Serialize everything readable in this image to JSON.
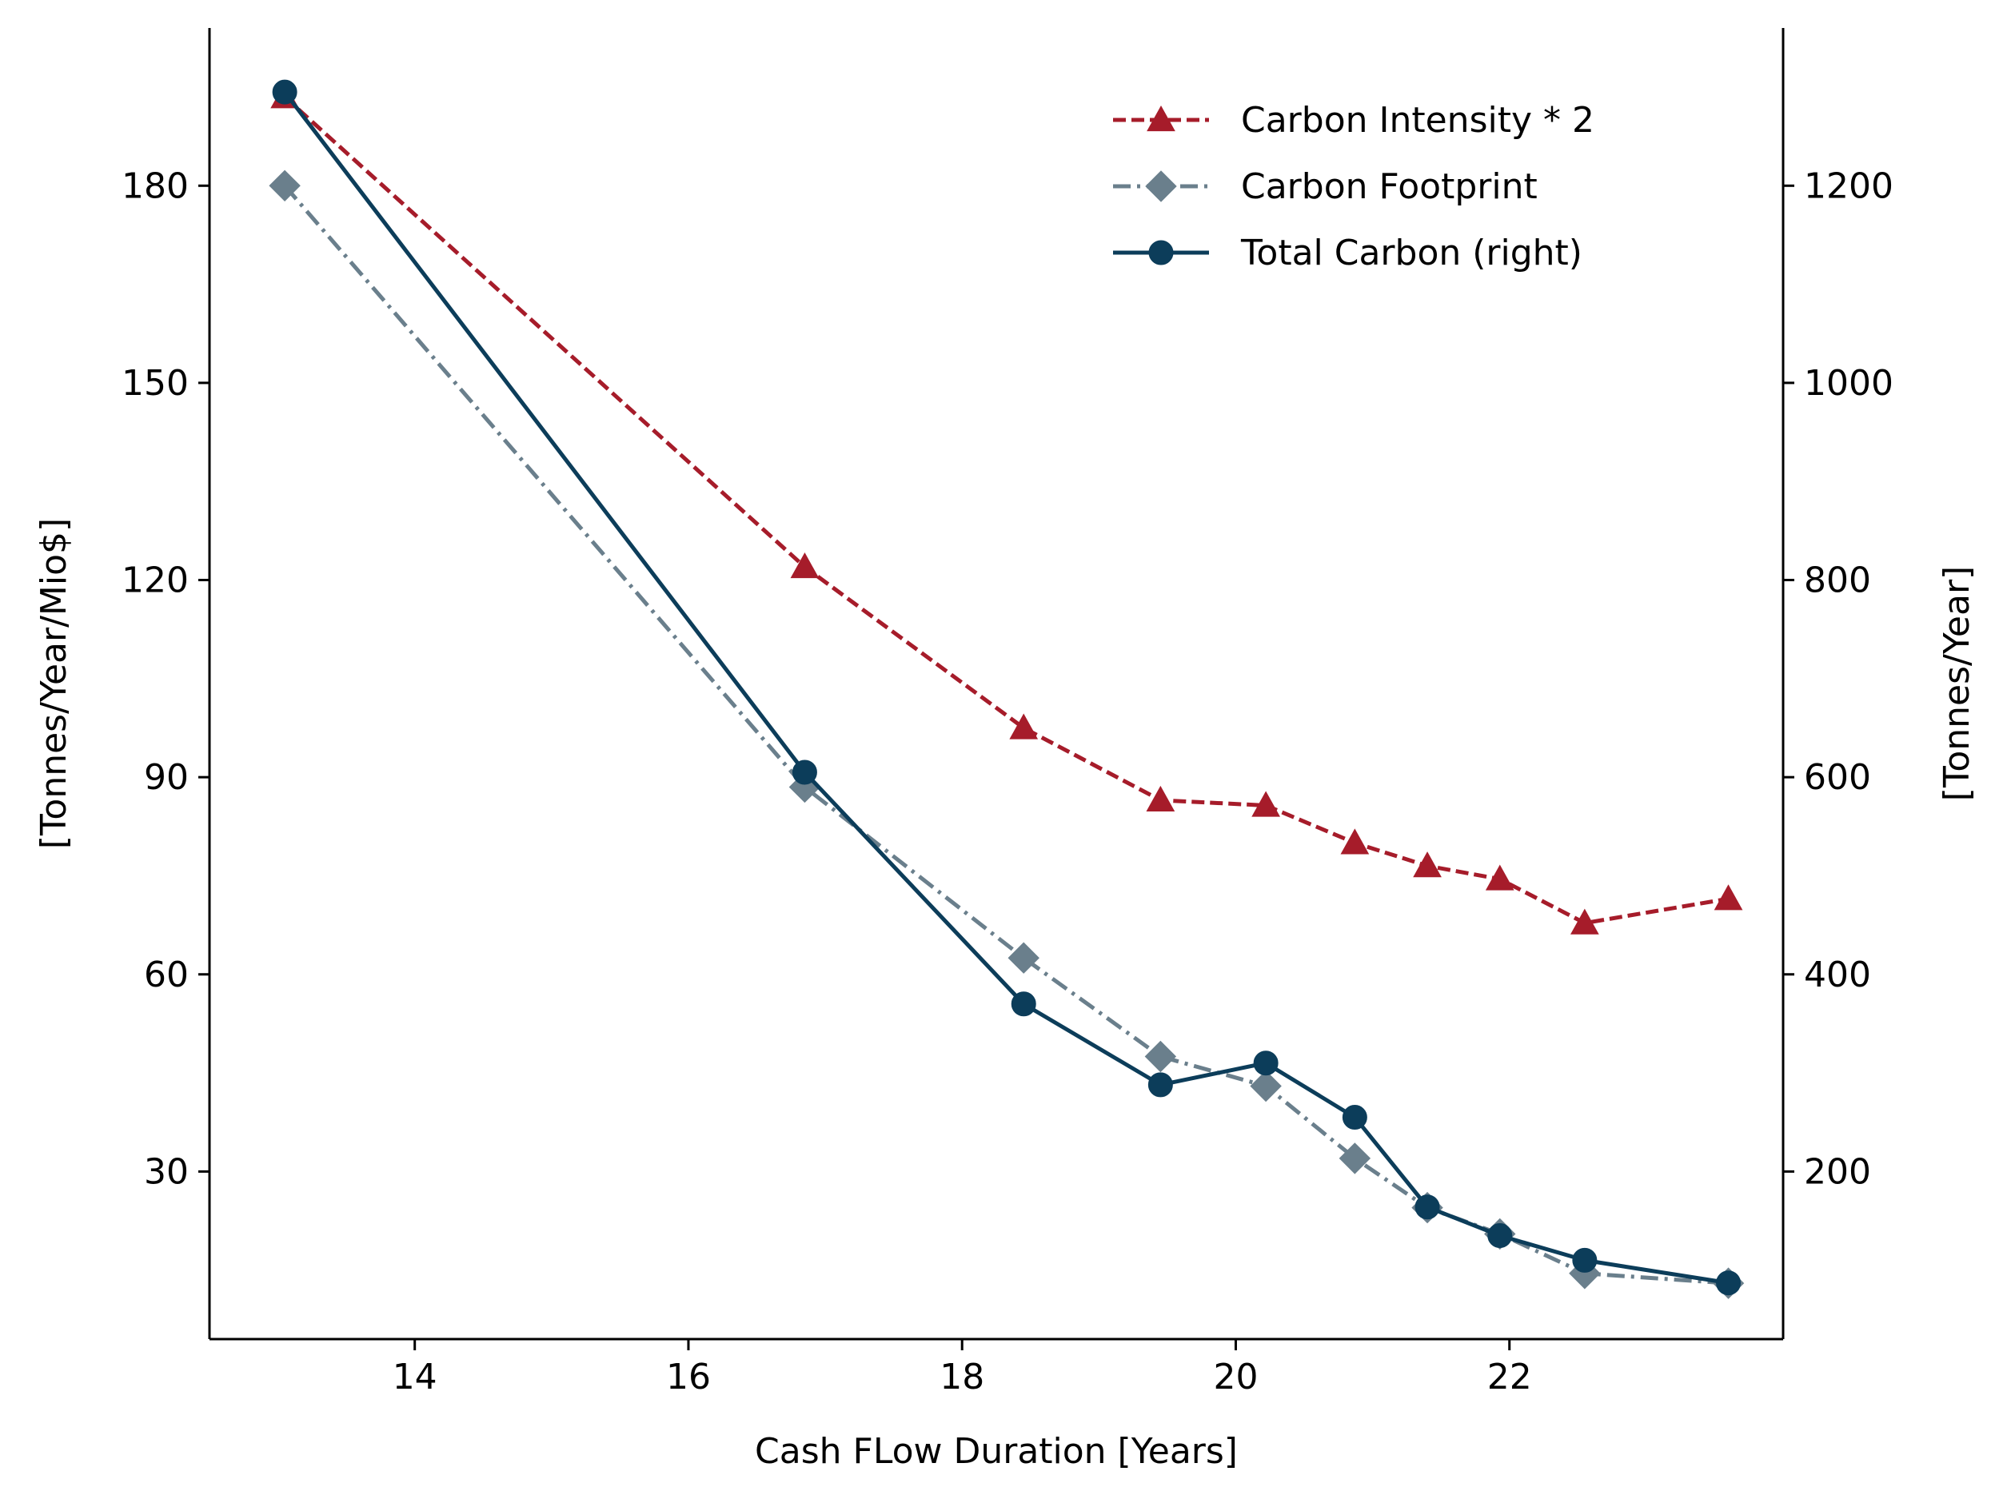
{
  "chart_data": {
    "type": "line",
    "title": "",
    "xlabel": "Cash FLow Duration [Years]",
    "ylabel_left": "[Tonnes/Year/Mio$]",
    "ylabel_right": "[Tonnes/Year]",
    "xlim": [
      12.5,
      24.0
    ],
    "ylim_left": [
      4.5,
      204
    ],
    "ylim_right": [
      30,
      1360
    ],
    "xticks": [
      14,
      16,
      18,
      20,
      22
    ],
    "yticks_left": [
      30,
      60,
      90,
      120,
      150,
      180
    ],
    "yticks_right": [
      200,
      400,
      600,
      800,
      1000,
      1200
    ],
    "grid": false,
    "legend_position": "top-right",
    "x": [
      13.05,
      16.85,
      18.45,
      19.45,
      20.22,
      20.87,
      21.4,
      21.93,
      22.55,
      23.6
    ],
    "series": [
      {
        "name": "Carbon Intensity * 2",
        "axis": "left",
        "color": "#a61c2a",
        "line_style": "dashed",
        "marker": "triangle",
        "values": [
          193.5,
          122,
          97.5,
          86.5,
          85.7,
          80,
          76.5,
          74.5,
          67.8,
          71.5
        ]
      },
      {
        "name": "Carbon Footprint",
        "axis": "left",
        "color": "#6a7f8c",
        "line_style": "dash-dot",
        "marker": "diamond",
        "values": [
          180,
          88.5,
          62.5,
          47.5,
          43,
          32,
          24.5,
          20.5,
          14.5,
          13
        ]
      },
      {
        "name": "Total Carbon (right)",
        "axis": "right",
        "color": "#0c3d5a",
        "line_style": "solid",
        "marker": "circle",
        "values": [
          1295,
          605,
          370,
          288,
          310,
          255,
          164,
          135,
          110,
          87
        ]
      }
    ]
  }
}
